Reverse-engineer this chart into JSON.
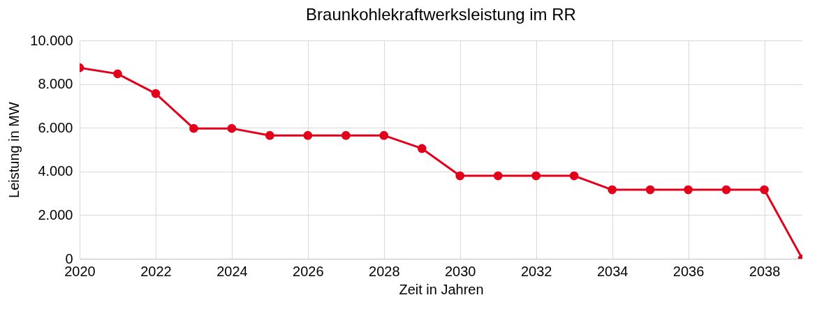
{
  "chart_data": {
    "type": "line",
    "title": "Braunkohlekraftwerksleistung im RR",
    "xlabel": "Zeit in Jahren",
    "ylabel": "Leistung in MW",
    "x": [
      2020,
      2021,
      2022,
      2023,
      2024,
      2025,
      2026,
      2027,
      2028,
      2029,
      2030,
      2031,
      2032,
      2033,
      2034,
      2035,
      2036,
      2037,
      2038,
      2039
    ],
    "series": [
      {
        "color": "#e3001b",
        "values": [
          8750,
          8470,
          7570,
          5970,
          5970,
          5650,
          5650,
          5650,
          5650,
          5050,
          3800,
          3800,
          3800,
          3800,
          3160,
          3160,
          3160,
          3160,
          3160,
          0
        ]
      }
    ],
    "xlim": [
      2020,
      2039
    ],
    "xticks": [
      2020,
      2022,
      2024,
      2026,
      2028,
      2030,
      2032,
      2034,
      2036,
      2038
    ],
    "ylim": [
      0,
      10000
    ],
    "yticks": [
      0,
      {
        "value": 2000,
        "label": "2.000"
      },
      {
        "value": 4000,
        "label": "4.000"
      },
      {
        "value": 6000,
        "label": "6.000"
      },
      {
        "value": 8000,
        "label": "8.000"
      },
      {
        "value": 10000,
        "label": "10.000"
      }
    ],
    "grid": true,
    "marker": "circle",
    "line_style": "solid"
  }
}
